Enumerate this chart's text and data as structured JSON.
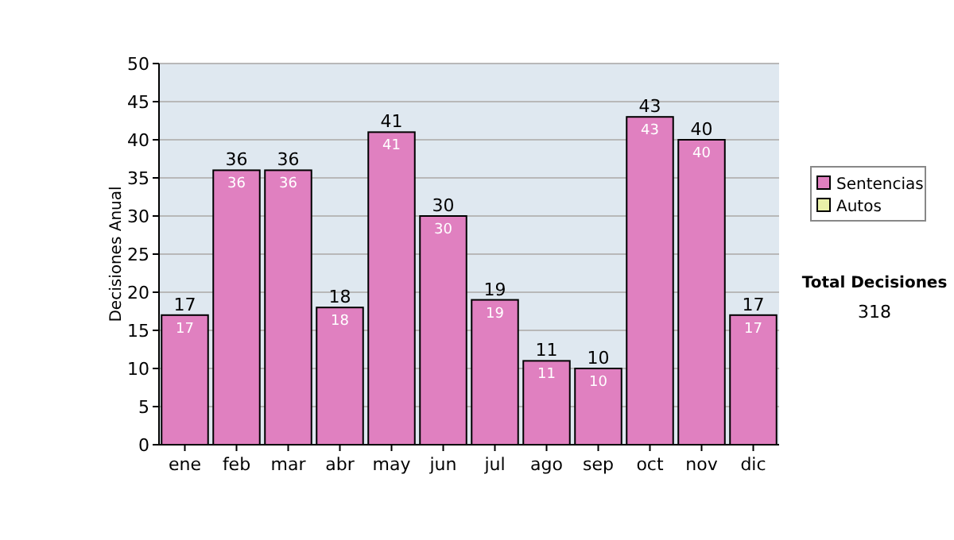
{
  "chart_data": {
    "type": "bar",
    "ylabel": "Decisiones Anual",
    "categories": [
      "ene",
      "feb",
      "mar",
      "abr",
      "may",
      "jun",
      "jul",
      "ago",
      "sep",
      "oct",
      "nov",
      "dic"
    ],
    "series": [
      {
        "name": "Sentencias",
        "color": "#e080c0",
        "values": [
          17,
          36,
          36,
          18,
          41,
          30,
          19,
          11,
          10,
          43,
          40,
          17
        ],
        "value_labels": [
          "17",
          "36",
          "36",
          "18",
          "41",
          "30",
          "19",
          "11",
          "10",
          "43",
          "40",
          "17"
        ]
      },
      {
        "name": "Autos",
        "color": "#e8f0a8",
        "values": [
          null,
          null,
          null,
          null,
          null,
          null,
          null,
          null,
          null,
          null,
          null,
          null
        ]
      }
    ],
    "ylim": [
      0,
      50
    ],
    "yticks": [
      0,
      5,
      10,
      15,
      20,
      25,
      30,
      35,
      40,
      45,
      50
    ],
    "grid": "y",
    "legend": "right",
    "annotations": [
      "Total Decisiones",
      "318",
      {
        "text": "17",
        "x": "ene",
        "y": 17
      },
      {
        "text": "36",
        "x": "feb",
        "y": 36
      },
      {
        "text": "36",
        "x": "mar",
        "y": 36
      },
      {
        "text": "18",
        "x": "abr",
        "y": 18
      },
      {
        "text": "41",
        "x": "may",
        "y": 41
      },
      {
        "text": "30",
        "x": "jun",
        "y": 30
      },
      {
        "text": "19",
        "x": "jul",
        "y": 19
      },
      {
        "text": "11",
        "x": "ago",
        "y": 11
      },
      {
        "text": "10",
        "x": "sep",
        "y": 10
      },
      {
        "text": "43",
        "x": "oct",
        "y": 43
      },
      {
        "text": "40",
        "x": "nov",
        "y": 40
      },
      {
        "text": "17",
        "x": "dic",
        "y": 17
      }
    ]
  }
}
